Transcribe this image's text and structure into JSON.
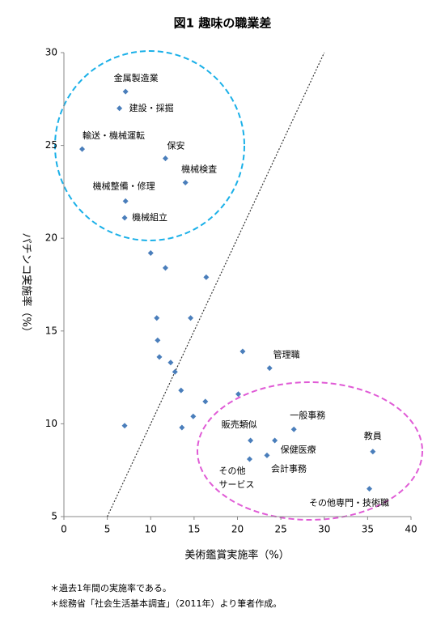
{
  "chart_data": {
    "type": "scatter",
    "title": "図1 趣味の職業差",
    "x_label": "美術鑑賞実施率（%）",
    "y_label": "パチンコ実施率（%）",
    "x": [
      7.1,
      6.4,
      2.1,
      11.7,
      14.0,
      7.1,
      7.0,
      10.0,
      11.7,
      16.4,
      10.7,
      14.6,
      10.8,
      11.0,
      12.3,
      12.8,
      20.6,
      23.7,
      13.5,
      16.3,
      20.1,
      14.9,
      7.0,
      13.6,
      26.5,
      21.5,
      24.3,
      21.4,
      23.4,
      35.6,
      35.2
    ],
    "values": [
      27.9,
      27.0,
      24.8,
      24.3,
      23.0,
      22.0,
      21.1,
      19.2,
      18.4,
      17.9,
      15.7,
      15.7,
      14.5,
      13.6,
      13.3,
      12.8,
      13.9,
      13.0,
      11.8,
      11.2,
      11.6,
      10.4,
      9.9,
      9.8,
      9.7,
      9.1,
      9.1,
      8.1,
      8.3,
      8.5,
      6.5
    ],
    "labels": [
      "金属製造業",
      "建設・採掘",
      "輸送・機械運転",
      "保安",
      "機械検査",
      "機械整備・修理",
      "機械組立",
      null,
      null,
      null,
      null,
      null,
      null,
      null,
      null,
      null,
      null,
      "管理職",
      null,
      null,
      null,
      null,
      null,
      null,
      "一般事務",
      "販売類似",
      "保健医療",
      [
        "その他",
        "サービス"
      ],
      "会計事務",
      "教員",
      "その他専門・技術職"
    ],
    "color": "#4a7ebb",
    "xlim": [
      0,
      40
    ],
    "xticks": [
      0,
      5,
      10,
      15,
      20,
      25,
      30,
      35,
      40
    ],
    "ylim": [
      5,
      30
    ],
    "yticks": [
      5,
      10,
      15,
      20,
      25,
      30
    ],
    "diagonal": true,
    "notes": [
      "＊過去1年間の実施率である。",
      "＊総務省「社会生活基本調査」（2011年）より筆者作成。"
    ]
  }
}
